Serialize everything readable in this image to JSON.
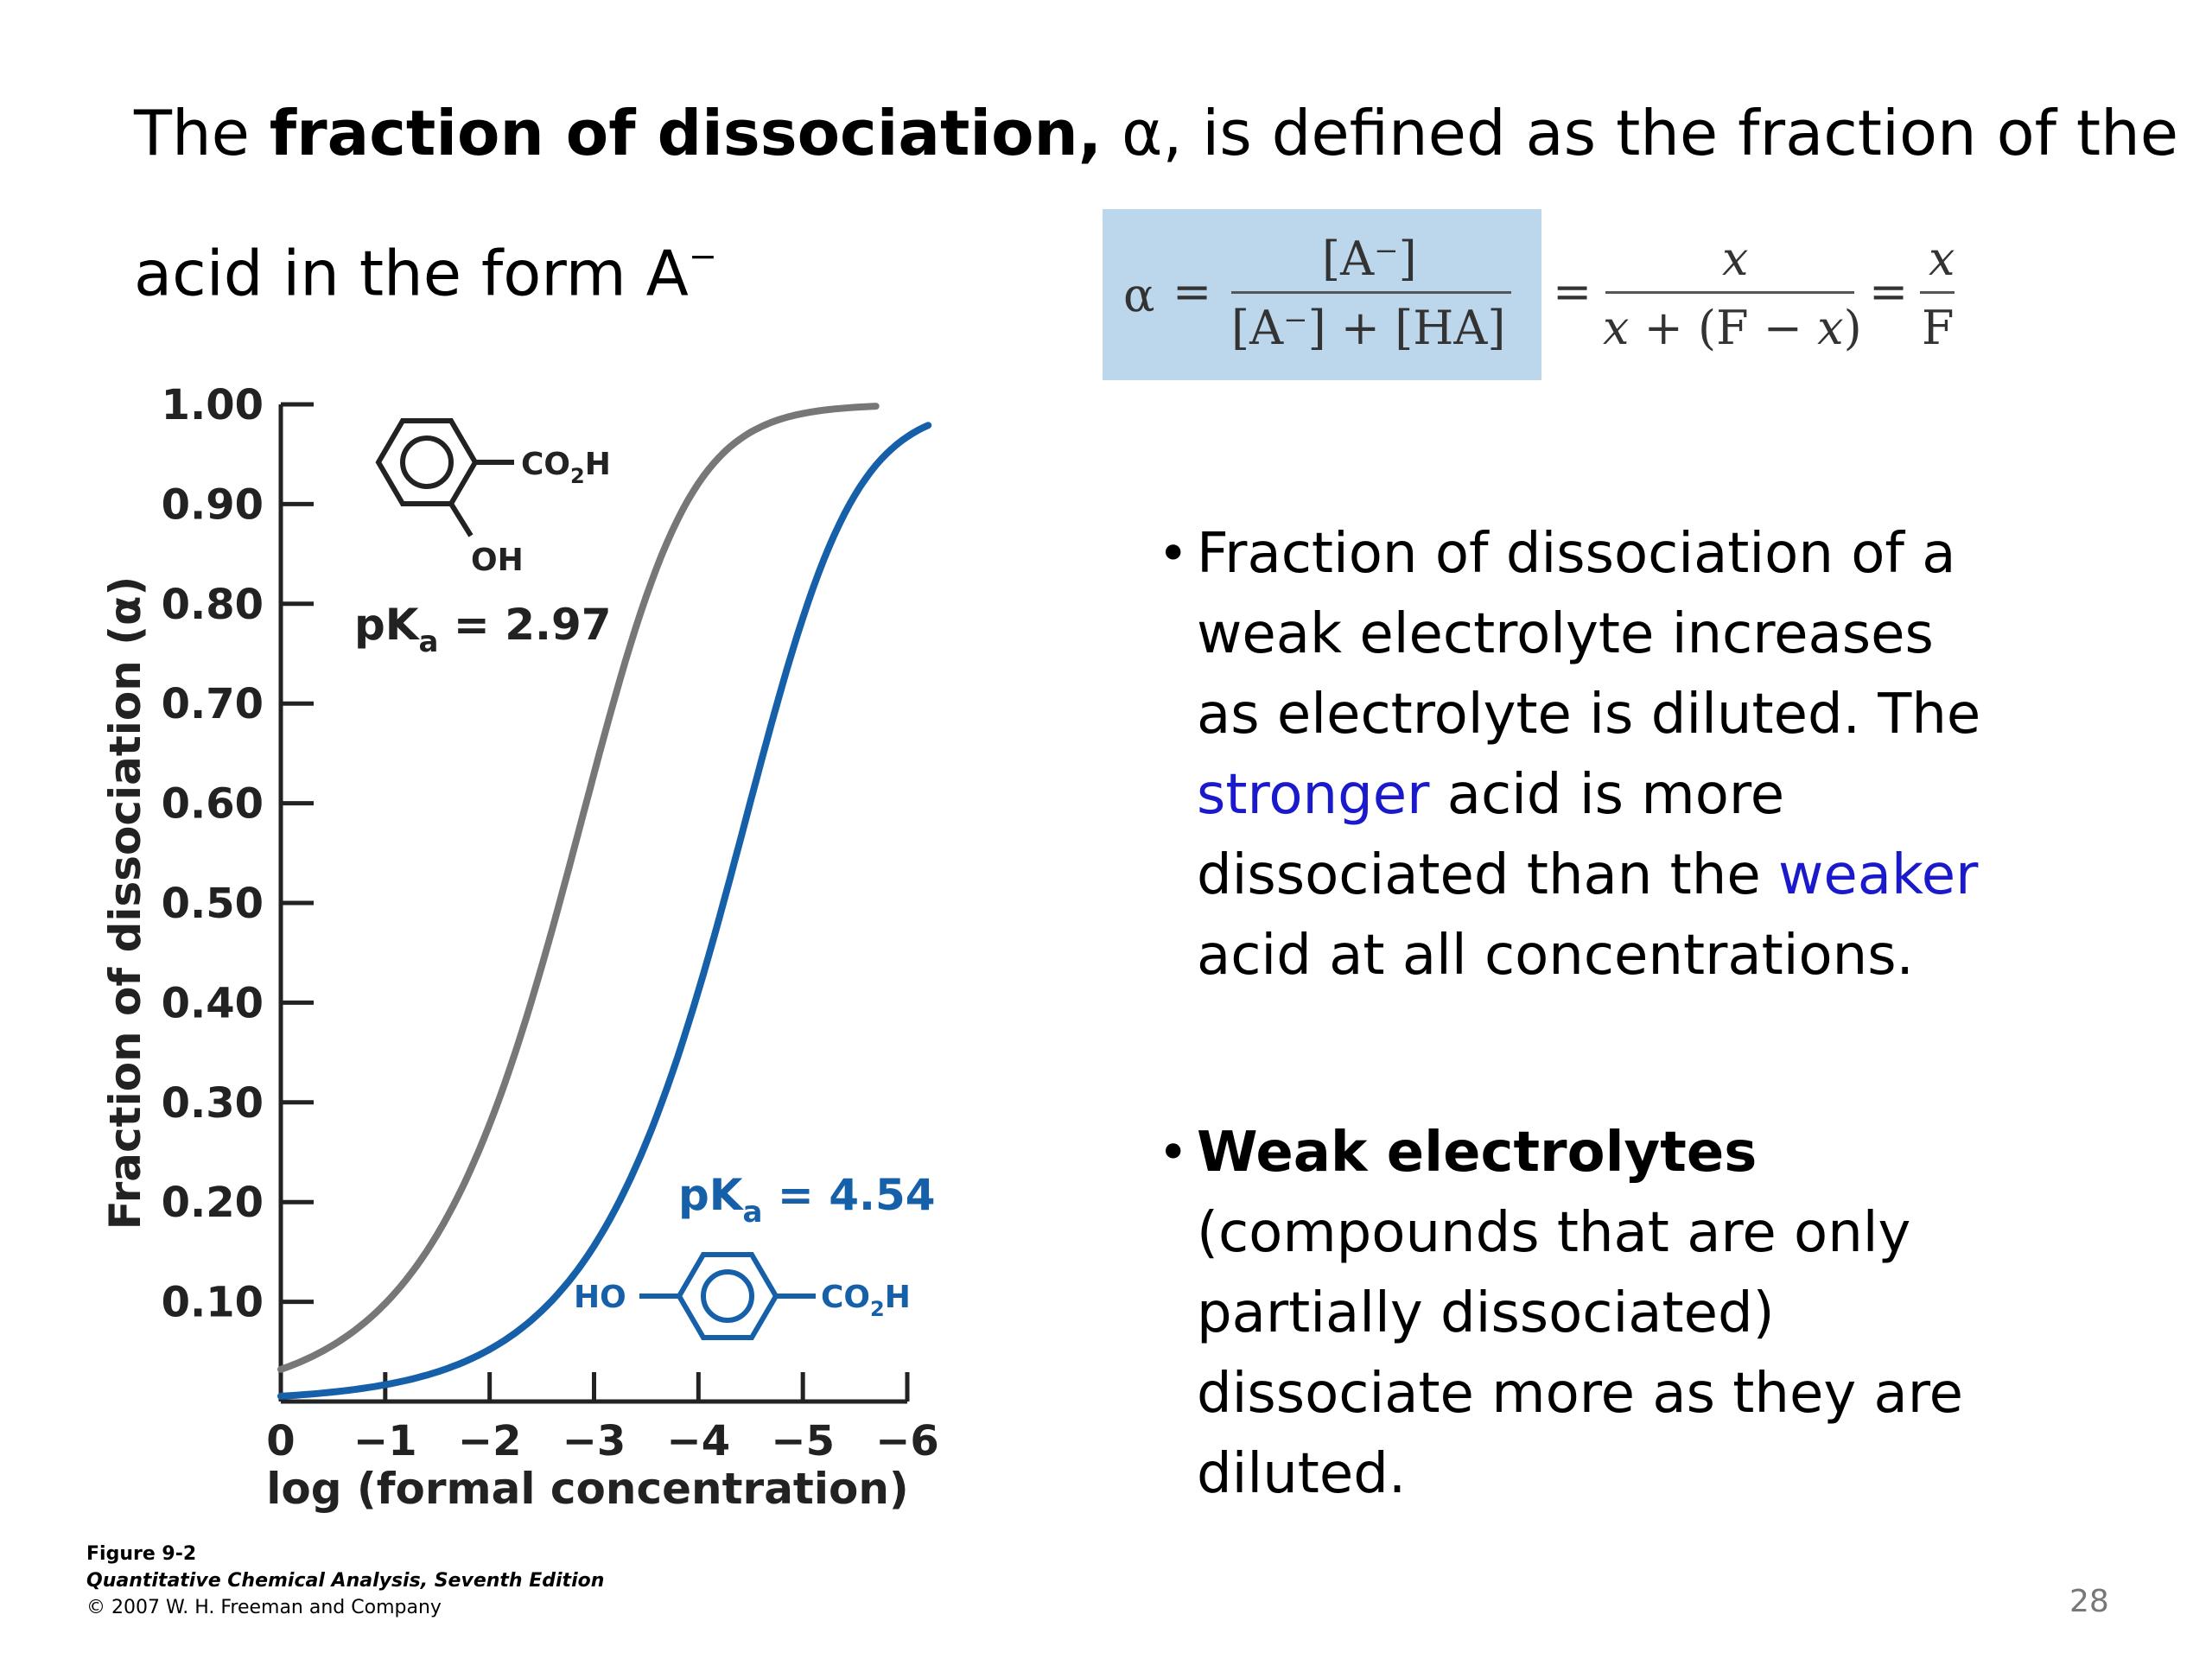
{
  "heading": {
    "line1_pre": "The ",
    "line1_bold": "fraction of dissociation,",
    "line1_post": " α, is defined as the fraction of the",
    "line2": "acid in the form A",
    "line2_sup": "−"
  },
  "formula": {
    "alpha": "α",
    "eq": "=",
    "num1": "[A⁻]",
    "den1": "[A⁻] + [HA]",
    "num2": "x",
    "den2_a": "x",
    "den2_b": " + (F − ",
    "den2_c": "x",
    "den2_d": ")",
    "num3": "x",
    "den3": "F"
  },
  "bullets": [
    {
      "lines": [
        [
          {
            "text": "Fraction of dissociation of a"
          }
        ],
        [
          {
            "text": "weak electrolyte increases"
          }
        ],
        [
          {
            "text": "as electrolyte is diluted. The"
          }
        ],
        [
          {
            "text": "stronger",
            "color": "blue"
          },
          {
            "text": " acid is more"
          }
        ],
        [
          {
            "text": "dissociated than the "
          },
          {
            "text": "weaker",
            "color": "blue"
          }
        ],
        [
          {
            "text": "acid at all concentrations."
          }
        ]
      ]
    },
    {
      "lines": [
        [
          {
            "text": "Weak electrolytes",
            "bold": true
          }
        ],
        [
          {
            "text": "(compounds that are only"
          }
        ],
        [
          {
            "text": "partially dissociated)"
          }
        ],
        [
          {
            "text": "dissociate more as they are"
          }
        ],
        [
          {
            "text": "diluted."
          }
        ]
      ]
    }
  ],
  "bullet_symbol": "•",
  "caption": {
    "line1": "Figure 9-2",
    "line2": "Quantitative Chemical Analysis, Seventh Edition",
    "line3": "© 2007 W. H. Freeman and Company"
  },
  "page_number": "28",
  "colors": {
    "gray_curve": "#777777",
    "blue_curve": "#1560a8",
    "blue_text": "#1a1acc",
    "formula_box": "#bcd6ec"
  },
  "chart_data": {
    "type": "line",
    "xlabel": "log (formal concentration)",
    "ylabel": "Fraction of dissociation (α)",
    "x_ticks": [
      0,
      -1,
      -2,
      -3,
      -4,
      -5,
      -6
    ],
    "x_tick_labels": [
      "0",
      "−1",
      "−2",
      "−3",
      "−4",
      "−5",
      "−6"
    ],
    "xlim": [
      0,
      -6
    ],
    "y_ticks": [
      0.1,
      0.2,
      0.3,
      0.4,
      0.5,
      0.6,
      0.7,
      0.8,
      0.9,
      1.0
    ],
    "y_tick_labels": [
      "0.10",
      "0.20",
      "0.30",
      "0.40",
      "0.50",
      "0.60",
      "0.70",
      "0.80",
      "0.90",
      "1.00"
    ],
    "ylim": [
      0,
      1.0
    ],
    "series": [
      {
        "pka": 2.97,
        "label_main": "pK",
        "label_sub": "a",
        "label_val": " = 2.97",
        "structure_top": "CO",
        "structure_top_sub": "2",
        "structure_top_end": "H",
        "structure_bottom": "OH",
        "color": "#777777",
        "x_start": 0,
        "x_end": -5.7
      },
      {
        "pka": 4.54,
        "label_main": "pK",
        "label_sub": "a",
        "label_val": " = 4.54",
        "structure_left": "HO",
        "structure_right": "CO",
        "structure_right_sub": "2",
        "structure_right_end": "H",
        "color": "#1560a8",
        "x_start": 0,
        "x_end": -6.2
      }
    ]
  }
}
